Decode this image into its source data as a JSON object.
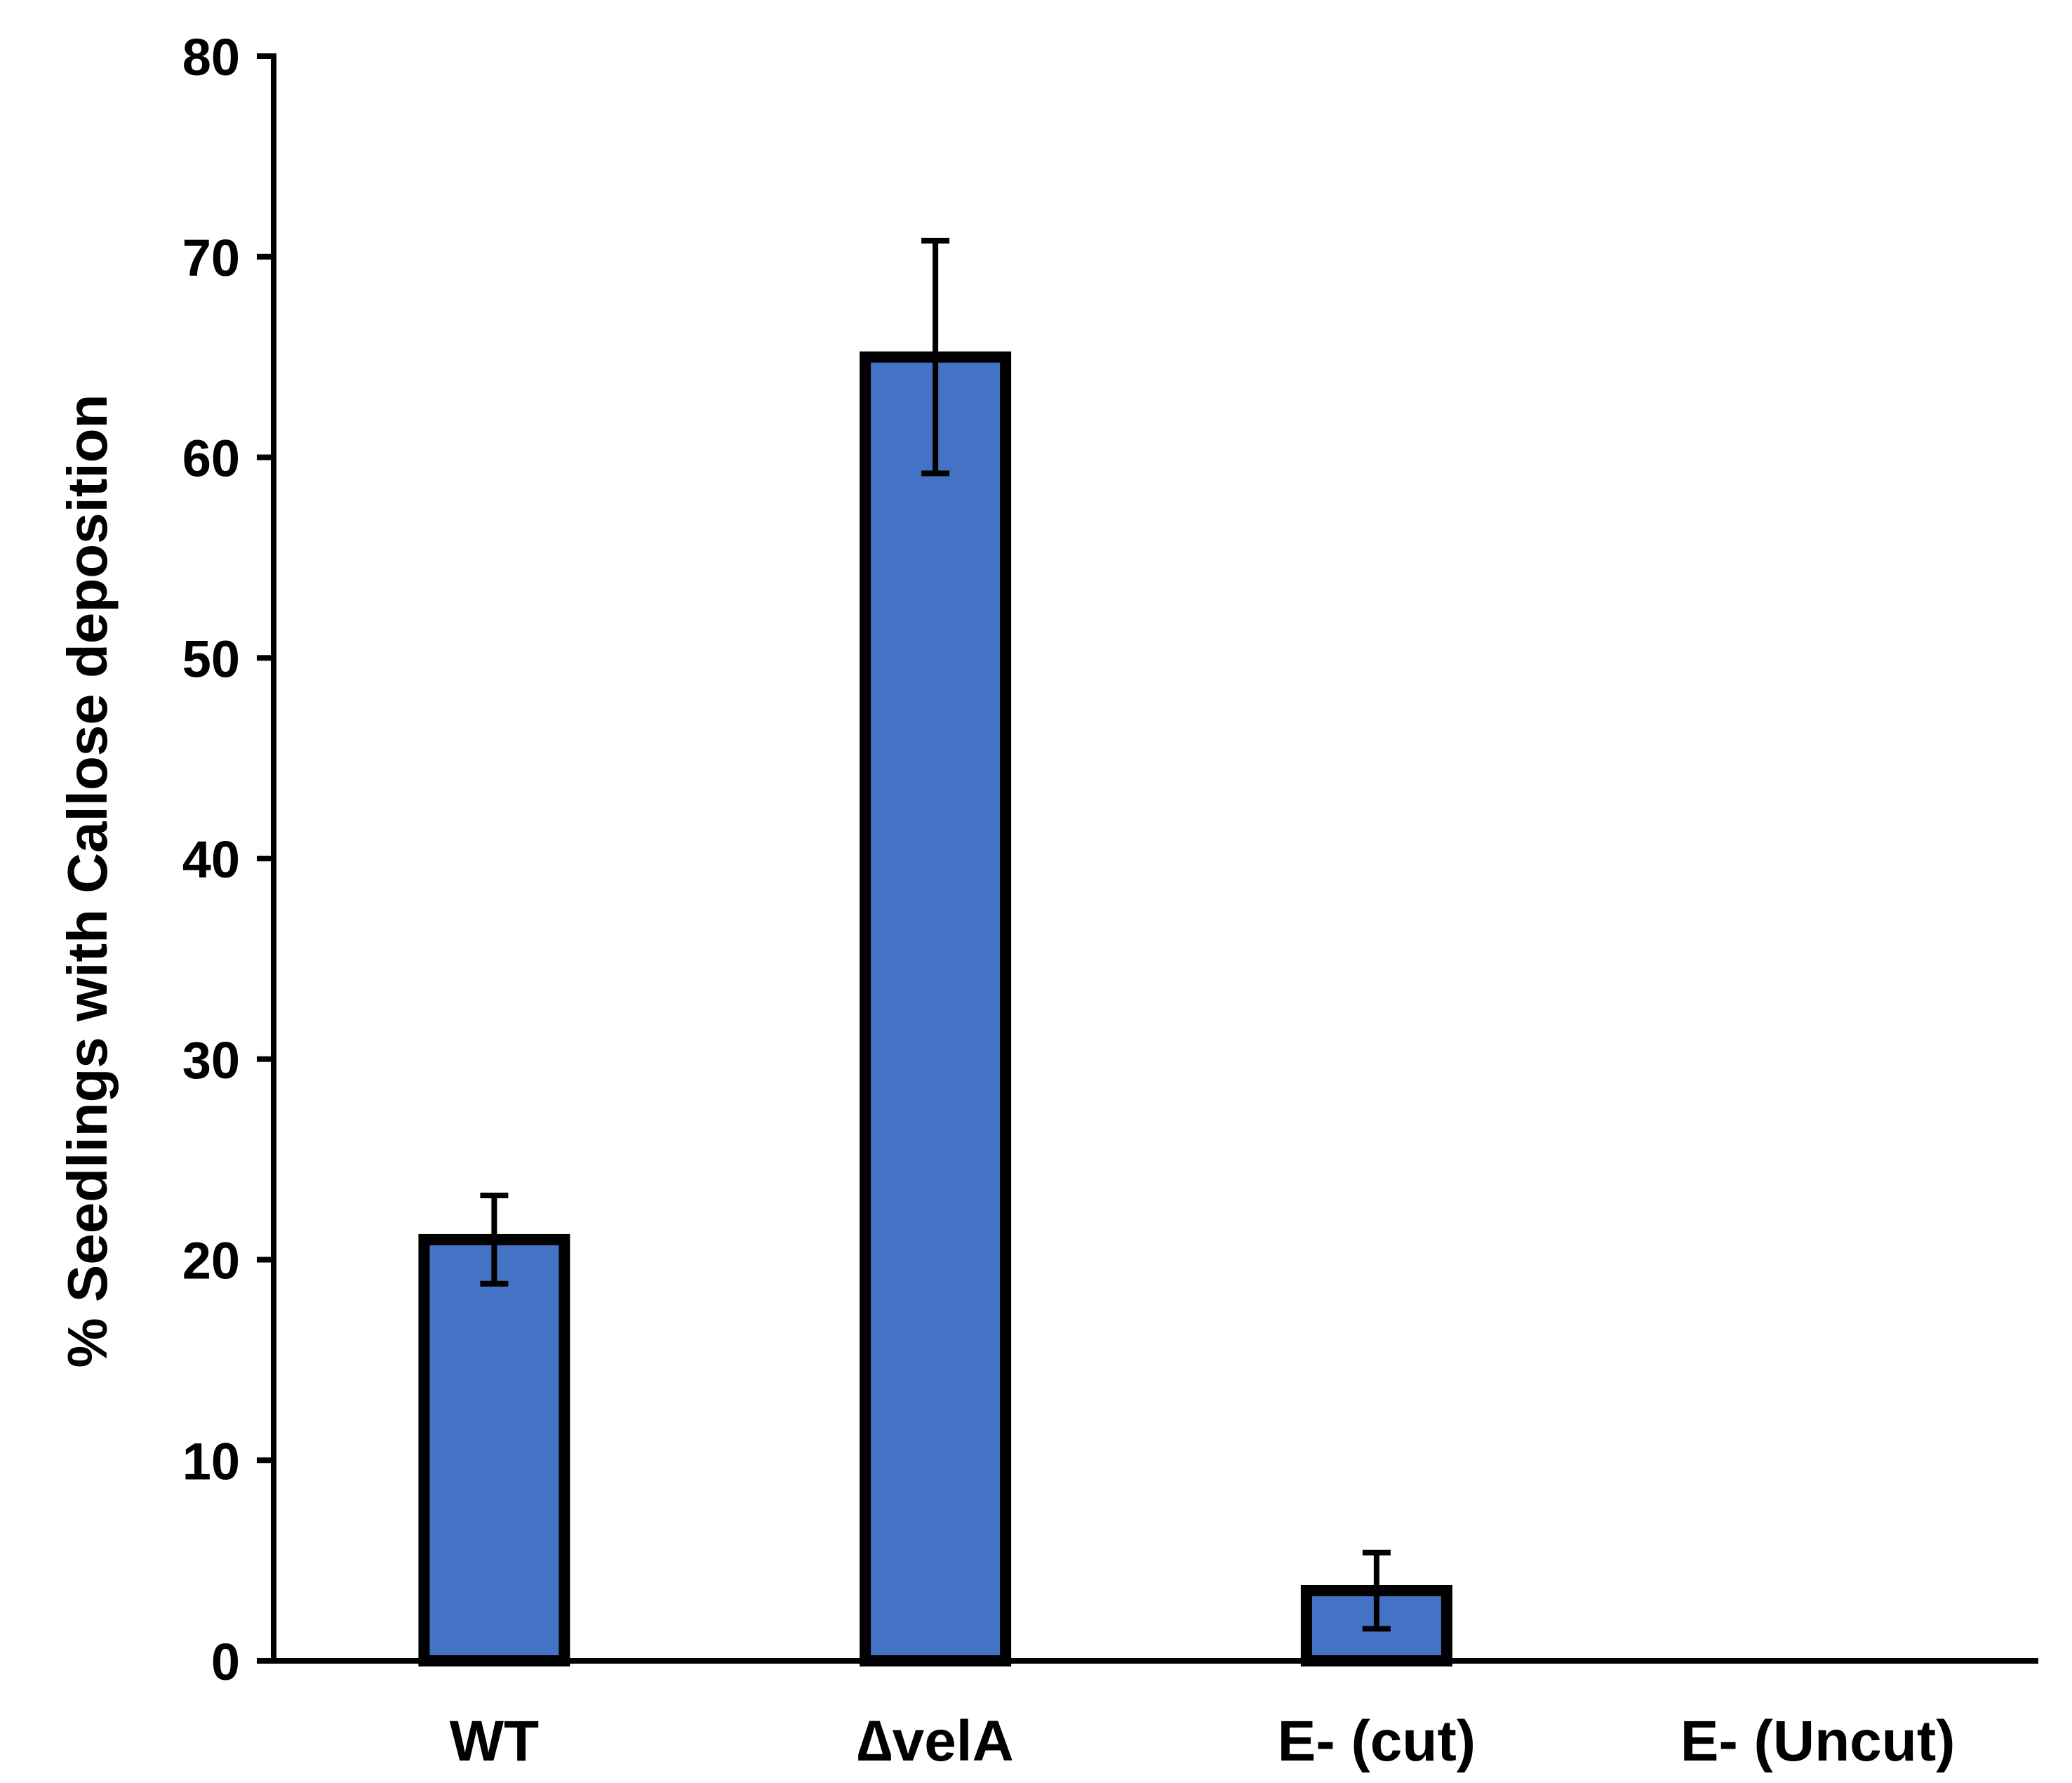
{
  "chart_data": {
    "type": "bar",
    "categories": [
      "WT",
      "∆velA",
      "E- (cut)",
      "E- (Uncut)"
    ],
    "values": [
      21,
      65,
      3.5,
      0
    ],
    "errors": [
      2.2,
      5.8,
      1.9,
      0
    ],
    "ylabel": "% Seedlings with Callose deposition",
    "xlabel": "",
    "ylim": [
      0,
      80
    ],
    "yticks": [
      0,
      10,
      20,
      30,
      40,
      50,
      60,
      70,
      80
    ],
    "grid": false,
    "legend": "none"
  },
  "colors": {
    "bar_fill": "#4472c4",
    "bar_stroke": "#000000",
    "axis": "#000000"
  }
}
